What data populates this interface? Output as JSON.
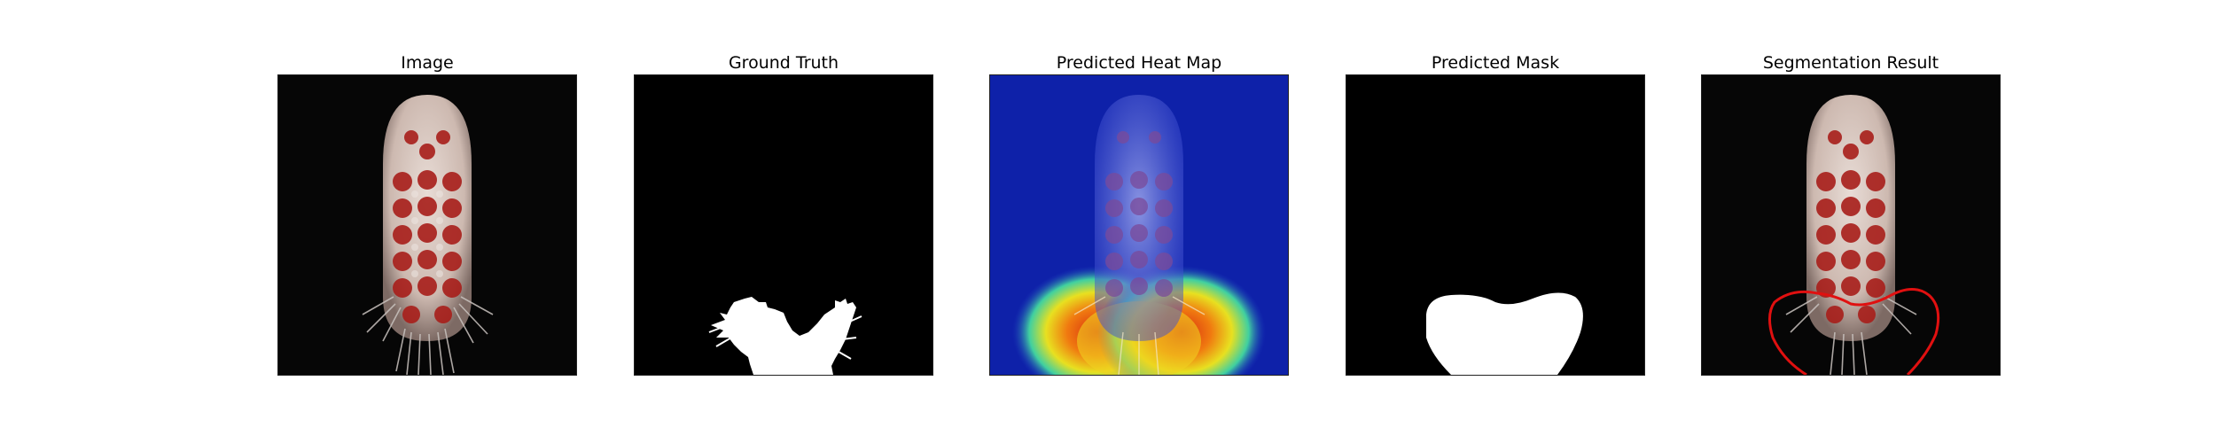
{
  "figure": {
    "panels": [
      {
        "title": "Image"
      },
      {
        "title": "Ground Truth"
      },
      {
        "title": "Predicted Heat Map"
      },
      {
        "title": "Predicted Mask"
      },
      {
        "title": "Segmentation Result"
      }
    ]
  },
  "colors": {
    "background": "#ffffff",
    "frame_background": "#000000",
    "mask": "#ffffff",
    "contour": "#e01010",
    "body": "#d8c8c0",
    "spots": "#a81e1a",
    "heatmap_low": "#0a1a9a",
    "heatmap_high": "#e03010"
  }
}
